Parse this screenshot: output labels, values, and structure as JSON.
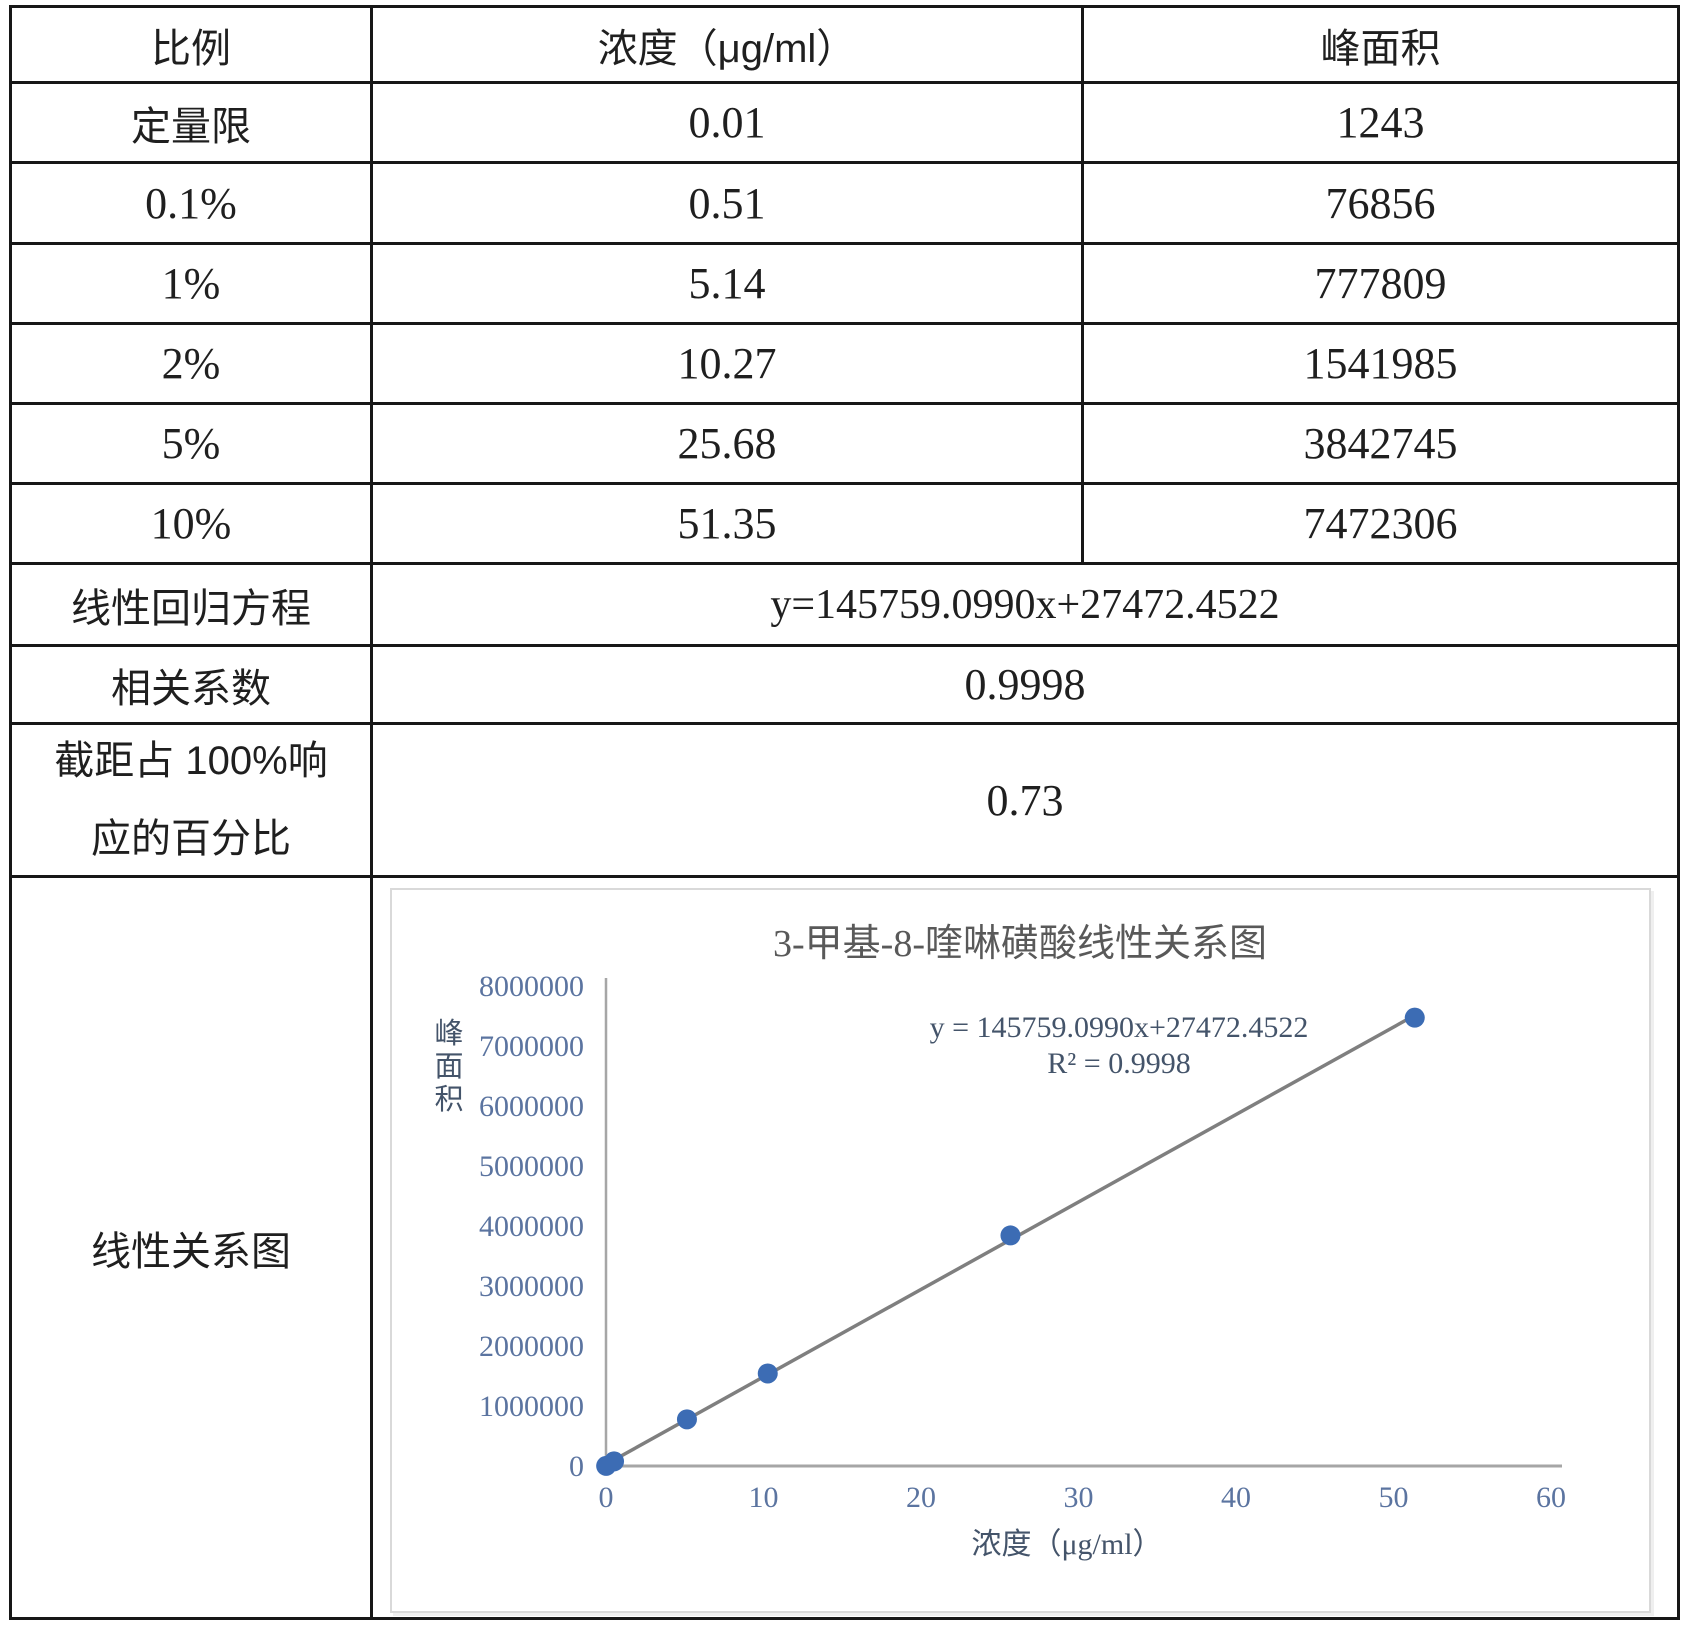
{
  "table": {
    "headers": [
      "比例",
      "浓度（μg/ml）",
      "峰面积"
    ],
    "rows": [
      [
        "定量限",
        "0.01",
        "1243"
      ],
      [
        "0.1%",
        "0.51",
        "76856"
      ],
      [
        "1%",
        "5.14",
        "777809"
      ],
      [
        "2%",
        "10.27",
        "1541985"
      ],
      [
        "5%",
        "25.68",
        "3842745"
      ],
      [
        "10%",
        "51.35",
        "7472306"
      ]
    ],
    "regression_label": "线性回归方程",
    "regression_value": "y=145759.0990x+27472.4522",
    "correlation_label": "相关系数",
    "correlation_value": "0.9998",
    "intercept_label_line1": "截距占 100%响",
    "intercept_label_line2": "应的百分比",
    "intercept_value": "0.73",
    "chart_row_label": "线性关系图"
  },
  "chart_data": {
    "type": "scatter",
    "title": "3-甲基-8-喹啉磺酸线性关系图",
    "xlabel": "浓度（μg/ml）",
    "ylabel": "峰面积",
    "annotation_line1": "y = 145759.0990x+27472.4522",
    "annotation_line2": "R² = 0.9998",
    "x": [
      0.01,
      0.51,
      5.14,
      10.27,
      25.68,
      51.35
    ],
    "y": [
      1243,
      76856,
      777809,
      1541985,
      3842745,
      7472306
    ],
    "xlim": [
      0,
      60
    ],
    "ylim": [
      0,
      8000000
    ],
    "x_ticks": [
      0,
      10,
      20,
      30,
      40,
      50,
      60
    ],
    "y_ticks": [
      0,
      1000000,
      2000000,
      3000000,
      4000000,
      5000000,
      6000000,
      7000000,
      8000000
    ],
    "trendline": {
      "slope": 145759.099,
      "intercept": 27472.4522
    },
    "legend": "none",
    "grid": false,
    "colors": {
      "point": "#3c6cb4",
      "trend_line": "#7f7f7f",
      "axis_line": "#a6a6a6",
      "tick_text": "#5b74a0",
      "title_text": "#595959",
      "axis_label_text": "#44546a",
      "annotation_text": "#44546a",
      "frame_border": "#d9d9d9"
    }
  }
}
